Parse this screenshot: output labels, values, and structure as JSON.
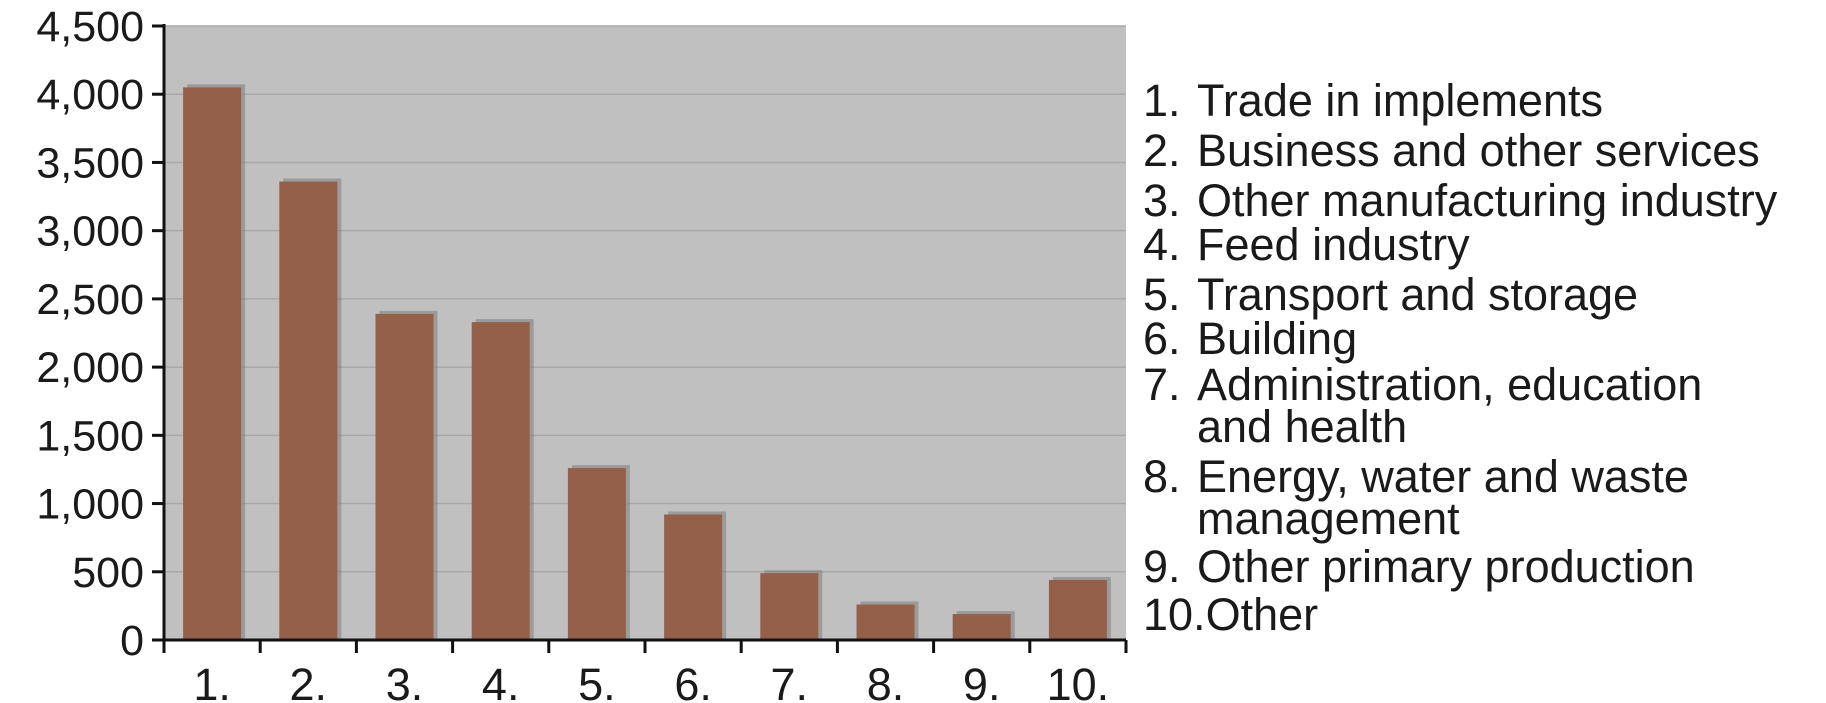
{
  "chart_data": {
    "type": "bar",
    "categories": [
      "1.",
      "2.",
      "3.",
      "4.",
      "5.",
      "6.",
      "7.",
      "8.",
      "9.",
      "10."
    ],
    "values": [
      4050,
      3360,
      2390,
      2330,
      1260,
      920,
      490,
      260,
      190,
      440
    ],
    "yticks": [
      "0",
      "500",
      "1,000",
      "1,500",
      "2,000",
      "2,500",
      "3,000",
      "3,500",
      "4,000",
      "4,500"
    ],
    "ylim": [
      0,
      4500
    ],
    "grid": true,
    "legend_position": "right",
    "legend": [
      {
        "num": "1.",
        "label": "Trade in implements"
      },
      {
        "num": "2.",
        "label": "Business and other services"
      },
      {
        "num": "3.",
        "label": "Other manufacturing industry"
      },
      {
        "num": "4.",
        "label": "Feed industry"
      },
      {
        "num": "5.",
        "label": "Transport and storage"
      },
      {
        "num": "6.",
        "label": "Building"
      },
      {
        "num": "7.",
        "label": "Administration, education\nand health"
      },
      {
        "num": "8.",
        "label": "Energy, water and waste\nmanagement"
      },
      {
        "num": "9.",
        "label": "Other primary production"
      },
      {
        "num": "10.",
        "label": "Other"
      }
    ],
    "colors": {
      "plot_bg": "#c0c0c0",
      "bar": "#94604a",
      "bar_shadow": "#7b7b7b",
      "grid": "#a8a8a8",
      "axis": "#111111"
    }
  }
}
